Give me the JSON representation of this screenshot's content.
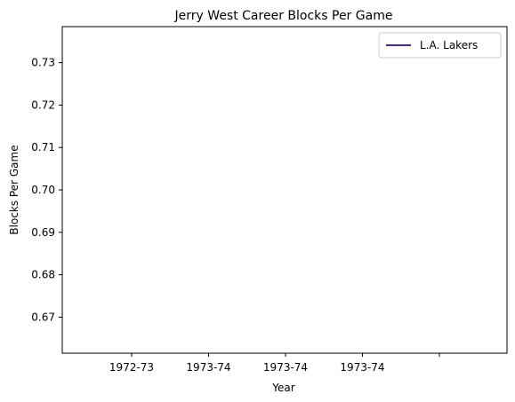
{
  "chart_data": {
    "type": "line",
    "title": "Jerry West Career Blocks Per Game",
    "xlabel": "Year",
    "ylabel": "Blocks Per Game",
    "x_tick_labels": [
      "1972-73",
      "1973-74",
      "1973-74",
      "1973-74",
      ""
    ],
    "y_ticks": [
      0.67,
      0.68,
      0.69,
      0.7,
      0.71,
      0.72,
      0.73
    ],
    "y_tick_labels": [
      "0.67",
      "0.68",
      "0.69",
      "0.70",
      "0.71",
      "0.72",
      "0.73"
    ],
    "ylim": [
      0.6615,
      0.7385
    ],
    "grid": false,
    "legend_position": "top-right",
    "series": [
      {
        "name": "L.A. Lakers",
        "color": "#552583",
        "x": [],
        "y": []
      }
    ]
  }
}
